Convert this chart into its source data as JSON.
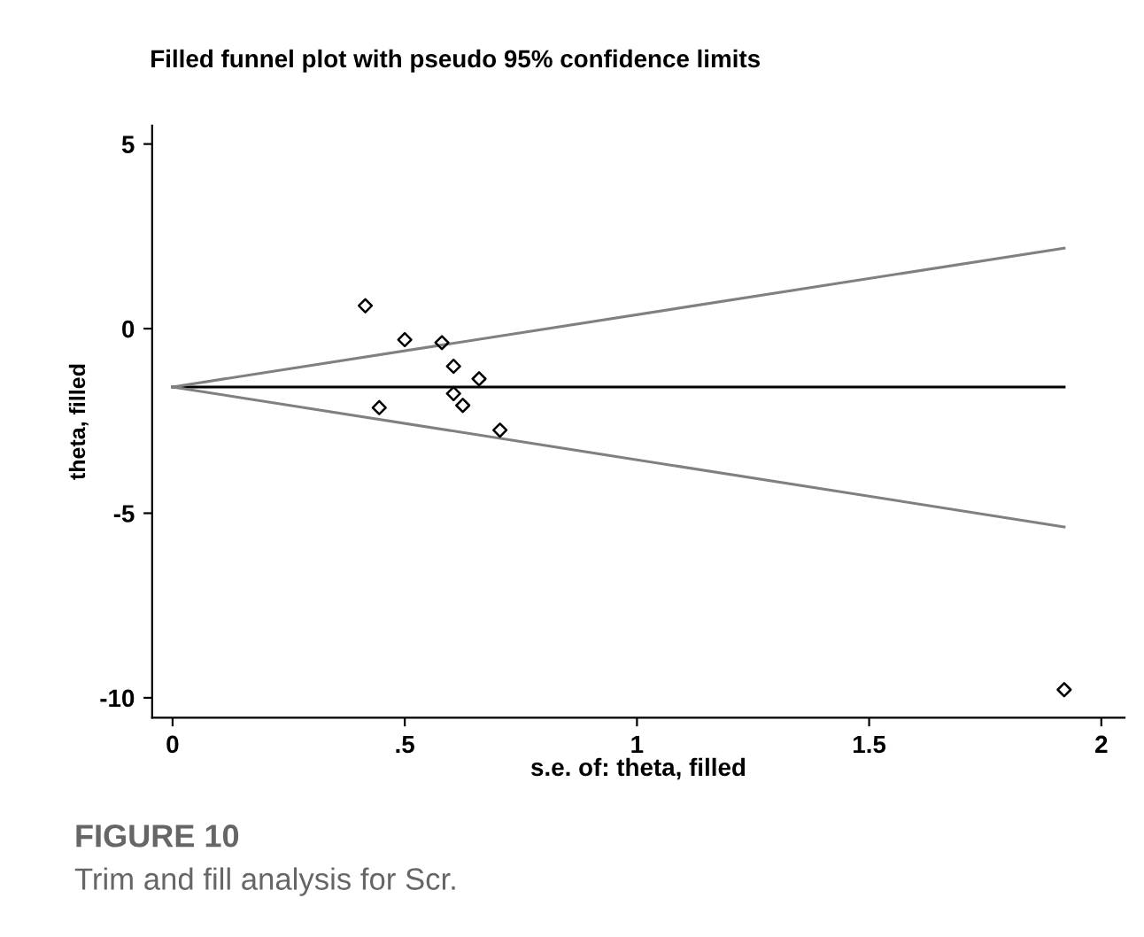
{
  "chart_data": {
    "type": "scatter",
    "title": "Filled funnel plot with pseudo 95% confidence limits",
    "xlabel": "s.e. of: theta, filled",
    "ylabel": "theta, filled",
    "annotations": [
      "FIGURE 10",
      "Trim and fill analysis for Scr."
    ],
    "series": [
      {
        "color": "#000000",
        "marker": "diamond",
        "x": [
          0.415,
          0.5,
          0.58,
          0.605,
          0.66,
          0.445,
          0.605,
          0.625,
          0.705,
          1.92
        ],
        "values": [
          0.62,
          -0.3,
          -0.38,
          -1.02,
          -1.36,
          -2.14,
          -1.76,
          -2.08,
          -2.75,
          -9.78
        ]
      },
      {
        "type": "line",
        "color": "#000000",
        "marker": "none",
        "x": [
          0,
          1.92
        ],
        "values": [
          -1.58,
          -1.58
        ]
      },
      {
        "type": "line",
        "color": "#808080",
        "marker": "none",
        "x": [
          0,
          1.92
        ],
        "values": [
          -1.58,
          2.18
        ]
      },
      {
        "type": "line",
        "color": "#808080",
        "marker": "none",
        "x": [
          0,
          1.92
        ],
        "values": [
          -1.58,
          -5.37
        ]
      }
    ],
    "xlim": [
      -0.044,
      2.05
    ],
    "ylim": [
      -10.54,
      5.5
    ],
    "xticks": [
      0,
      {
        "value": 0.5,
        "label": ".5"
      },
      1,
      1.5,
      2
    ],
    "yticks": [
      -10,
      -5,
      0,
      5
    ],
    "grid": false,
    "legend": false
  }
}
